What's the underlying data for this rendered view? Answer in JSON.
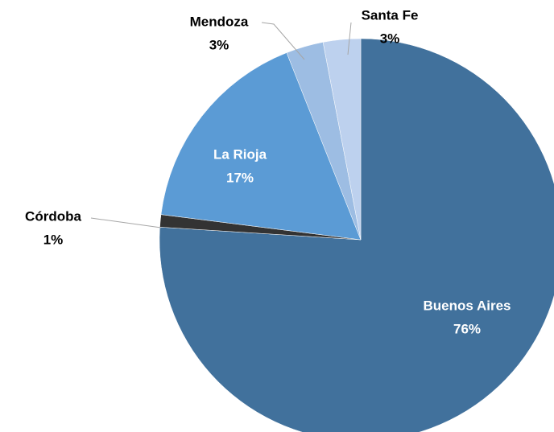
{
  "chart_data": {
    "type": "pie",
    "categories": [
      "Buenos Aires",
      "Córdoba",
      "La Rioja",
      "Mendoza",
      "Santa Fe"
    ],
    "values": [
      76,
      1,
      17,
      3,
      3
    ],
    "value_labels": [
      "76%",
      "1%",
      "17%",
      "3%",
      "3%"
    ],
    "colors": [
      "#41719c",
      "#333333",
      "#5b9bd5",
      "#9dbde3",
      "#bdd1ee"
    ]
  }
}
